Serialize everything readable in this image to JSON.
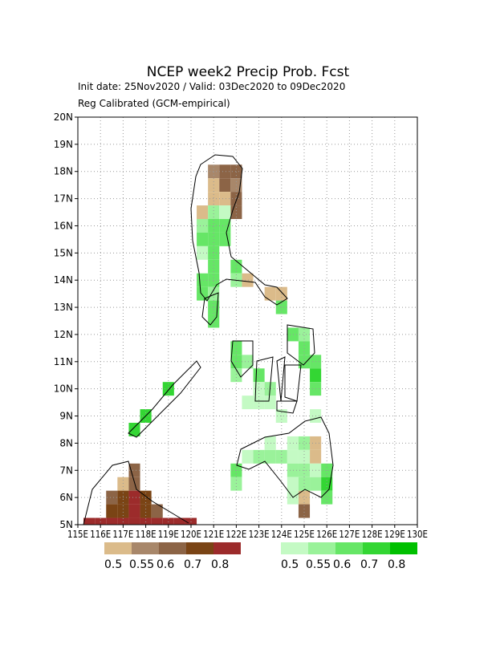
{
  "chart_data": {
    "type": "gridmap",
    "title": "NCEP week2 Precip Prob. Fcst",
    "subtitle": "Init date: 25Nov2020 / Valid: 03Dec2020 to 09Dec2020",
    "note": "Reg Calibrated (GCM-empirical)",
    "xlim": [
      115,
      130
    ],
    "ylim": [
      5,
      20
    ],
    "xticks": [
      {
        "value": 115,
        "label": "115E"
      },
      {
        "value": 116,
        "label": "116E"
      },
      {
        "value": 117,
        "label": "117E"
      },
      {
        "value": 118,
        "label": "118E"
      },
      {
        "value": 119,
        "label": "119E"
      },
      {
        "value": 120,
        "label": "120E"
      },
      {
        "value": 121,
        "label": "121E"
      },
      {
        "value": 122,
        "label": "122E"
      },
      {
        "value": 123,
        "label": "123E"
      },
      {
        "value": 124,
        "label": "124E"
      },
      {
        "value": 125,
        "label": "125E"
      },
      {
        "value": 126,
        "label": "126E"
      },
      {
        "value": 127,
        "label": "127E"
      },
      {
        "value": 128,
        "label": "128E"
      },
      {
        "value": 129,
        "label": "129E"
      },
      {
        "value": 130,
        "label": "130E"
      }
    ],
    "yticks": [
      {
        "value": 5,
        "label": "5N"
      },
      {
        "value": 6,
        "label": "6N"
      },
      {
        "value": 7,
        "label": "7N"
      },
      {
        "value": 8,
        "label": "8N"
      },
      {
        "value": 9,
        "label": "9N"
      },
      {
        "value": 10,
        "label": "10N"
      },
      {
        "value": 11,
        "label": "11N"
      },
      {
        "value": 12,
        "label": "12N"
      },
      {
        "value": 13,
        "label": "13N"
      },
      {
        "value": 14,
        "label": "14N"
      },
      {
        "value": 15,
        "label": "15N"
      },
      {
        "value": 16,
        "label": "16N"
      },
      {
        "value": 17,
        "label": "17N"
      },
      {
        "value": 18,
        "label": "18N"
      },
      {
        "value": 19,
        "label": "19N"
      },
      {
        "value": 20,
        "label": "20N"
      }
    ],
    "grid": true,
    "levels": [
      0.5,
      0.55,
      0.6,
      0.7,
      0.8
    ],
    "below_colors": [
      "#dbbb8a",
      "#a8876a",
      "#8c6446",
      "#7a4415",
      "#9c2b2b"
    ],
    "above_colors": [
      "#c4fac4",
      "#9af29a",
      "#66e666",
      "#33d633",
      "#00c000"
    ],
    "below": {
      "lon": [
        121.0,
        121.5,
        122.0,
        121.0,
        121.5,
        122.0,
        121.0,
        121.5,
        122.0,
        120.5,
        122.0,
        122.5,
        123.5,
        124.0,
        117.5,
        117.0,
        117.5,
        116.5,
        117.0,
        117.5,
        118.0,
        116.5,
        117.0,
        117.5,
        118.0,
        118.5,
        115.5,
        116.0,
        116.5,
        117.0,
        117.5,
        118.0,
        118.5,
        119.0,
        119.5,
        120.0,
        125.0,
        125.0,
        125.5,
        125.5
      ],
      "lat": [
        18.0,
        18.0,
        18.0,
        17.5,
        17.5,
        17.5,
        17.0,
        17.0,
        17.0,
        16.5,
        16.5,
        14.0,
        13.5,
        13.5,
        7.0,
        6.5,
        6.5,
        6.0,
        6.0,
        6.0,
        6.0,
        5.5,
        5.5,
        5.5,
        5.5,
        5.5,
        5.0,
        5.0,
        5.0,
        5.0,
        5.0,
        5.0,
        5.0,
        5.0,
        5.0,
        5.0,
        6.0,
        5.5,
        8.0,
        7.5
      ],
      "values": [
        0.55,
        0.6,
        0.6,
        0.5,
        0.6,
        0.55,
        0.5,
        0.5,
        0.6,
        0.5,
        0.6,
        0.5,
        0.5,
        0.5,
        0.6,
        0.5,
        0.6,
        0.6,
        0.7,
        0.8,
        0.7,
        0.7,
        0.7,
        0.8,
        0.7,
        0.6,
        0.8,
        0.8,
        0.8,
        0.8,
        0.8,
        0.8,
        0.8,
        0.8,
        0.8,
        0.8,
        0.5,
        0.6,
        0.5,
        0.5
      ]
    },
    "above": {
      "lon": [
        120.5,
        121.0,
        121.5,
        121.0,
        121.5,
        120.5,
        121.0,
        121.5,
        120.5,
        121.0,
        121.0,
        120.5,
        121.0,
        120.5,
        121.0,
        121.0,
        121.0,
        122.0,
        122.0,
        122.0,
        122.0,
        122.0,
        122.5,
        123.0,
        123.0,
        122.5,
        123.0,
        123.5,
        123.5,
        124.5,
        125.0,
        125.0,
        125.0,
        125.5,
        125.5,
        125.5,
        124.0,
        119.0,
        118.0,
        117.5,
        122.0,
        122.0,
        122.5,
        123.0,
        123.5,
        123.5,
        124.0,
        124.5,
        124.5,
        124.5,
        124.5,
        124.5,
        125.0,
        125.0,
        125.0,
        125.0,
        125.5,
        125.5,
        126.0,
        126.0,
        126.0,
        125.5,
        124.0
      ],
      "lat": [
        16.0,
        16.0,
        16.0,
        16.5,
        16.5,
        15.5,
        15.5,
        15.5,
        15.0,
        15.0,
        14.5,
        14.0,
        14.0,
        13.5,
        13.5,
        13.0,
        12.5,
        14.5,
        14.0,
        11.5,
        11.0,
        10.5,
        11.0,
        10.5,
        10.0,
        9.5,
        9.5,
        9.5,
        10.0,
        12.0,
        12.0,
        11.5,
        11.0,
        11.0,
        10.5,
        10.0,
        13.0,
        10.0,
        9.0,
        8.5,
        7.0,
        6.5,
        7.5,
        7.5,
        7.5,
        8.0,
        7.5,
        8.0,
        7.5,
        7.0,
        6.5,
        6.0,
        8.0,
        7.5,
        7.0,
        6.5,
        7.0,
        6.5,
        7.0,
        6.5,
        6.0,
        9.0,
        9.0
      ],
      "values": [
        0.55,
        0.6,
        0.6,
        0.55,
        0.5,
        0.6,
        0.6,
        0.6,
        0.5,
        0.6,
        0.6,
        0.6,
        0.6,
        0.6,
        0.55,
        0.6,
        0.6,
        0.6,
        0.55,
        0.6,
        0.6,
        0.55,
        0.55,
        0.6,
        0.5,
        0.5,
        0.5,
        0.5,
        0.55,
        0.6,
        0.55,
        0.6,
        0.6,
        0.6,
        0.7,
        0.6,
        0.6,
        0.7,
        0.7,
        0.7,
        0.6,
        0.55,
        0.5,
        0.55,
        0.55,
        0.5,
        0.55,
        0.5,
        0.5,
        0.55,
        0.5,
        0.5,
        0.55,
        0.5,
        0.55,
        0.55,
        0.5,
        0.55,
        0.6,
        0.7,
        0.6,
        0.5,
        0.5
      ]
    }
  }
}
